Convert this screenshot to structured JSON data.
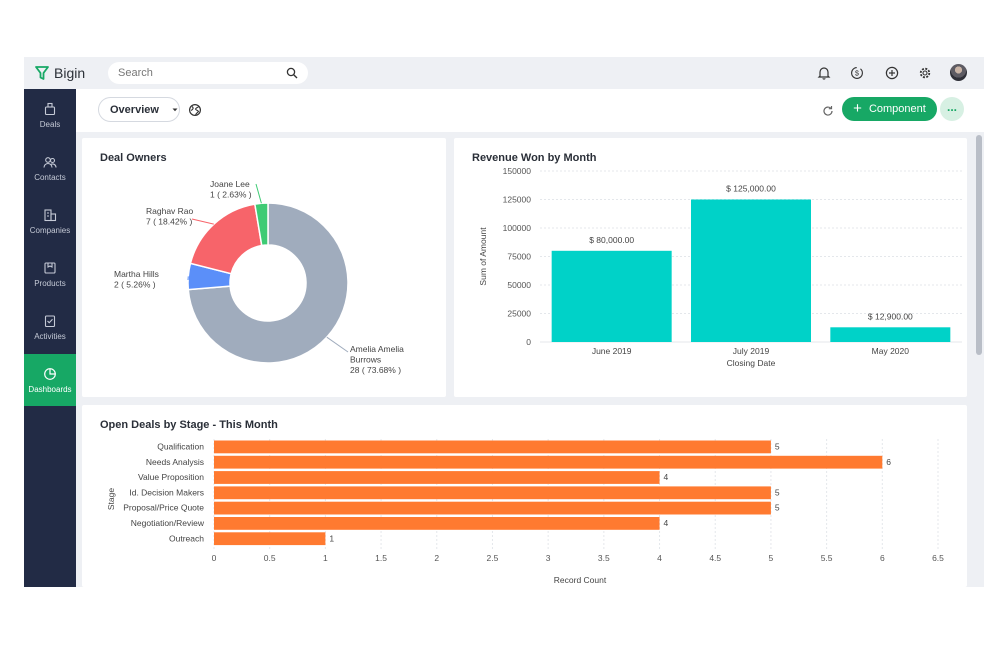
{
  "app": {
    "name": "Bigin"
  },
  "search": {
    "placeholder": "Search"
  },
  "sidebar": {
    "items": [
      {
        "label": "Deals",
        "icon": "deals-icon"
      },
      {
        "label": "Contacts",
        "icon": "contacts-icon"
      },
      {
        "label": "Companies",
        "icon": "companies-icon"
      },
      {
        "label": "Products",
        "icon": "products-icon"
      },
      {
        "label": "Activities",
        "icon": "activities-icon"
      },
      {
        "label": "Dashboards",
        "icon": "dashboards-icon",
        "active": true
      }
    ]
  },
  "header": {
    "view_label": "Overview",
    "component_label": "Component",
    "more_label": "..."
  },
  "colors": {
    "brand_green": "#17a865",
    "sidebar": "#222b45",
    "bar_teal": "#00d2c8",
    "bar_orange": "#ff7a30"
  },
  "cards": {
    "owners_title": "Deal Owners",
    "revenue_title": "Revenue Won by Month",
    "stage_title": "Open Deals by Stage - This Month"
  },
  "chart_data": [
    {
      "type": "pie",
      "title": "Deal Owners",
      "slices": [
        {
          "label": "Amelia Amelia Burrows",
          "value": 28,
          "percent": "73.68%",
          "color": "#a0acbd"
        },
        {
          "label": "Martha Hills",
          "value": 2,
          "percent": "5.26%",
          "color": "#5b8ff9"
        },
        {
          "label": "Raghav Rao",
          "value": 7,
          "percent": "18.42%",
          "color": "#f7646a"
        },
        {
          "label": "Joane Lee",
          "value": 1,
          "percent": "2.63%",
          "color": "#3ecb74"
        }
      ]
    },
    {
      "type": "bar",
      "title": "Revenue Won by Month",
      "categories": [
        "June 2019",
        "July 2019",
        "May 2020"
      ],
      "values": [
        80000,
        125000,
        12900
      ],
      "value_labels": [
        "$ 80,000.00",
        "$ 125,000.00",
        "$ 12,900.00"
      ],
      "xlabel": "Closing Date",
      "ylabel": "Sum of Amount",
      "ylim": [
        0,
        150000
      ],
      "yticks": [
        "150000",
        "125000",
        "100000",
        "75000",
        "50000",
        "25000",
        "0"
      ],
      "grid": true
    },
    {
      "type": "bar",
      "orientation": "horizontal",
      "title": "Open Deals by Stage - This Month",
      "categories": [
        "Qualification",
        "Needs Analysis",
        "Value Proposition",
        "Id. Decision Makers",
        "Proposal/Price Quote",
        "Negotiation/Review",
        "Outreach"
      ],
      "values": [
        5,
        6,
        4,
        5,
        5,
        4,
        1
      ],
      "xlabel": "Record Count",
      "ylabel": "Stage",
      "xlim": [
        0,
        6.5
      ],
      "xticks": [
        "0",
        "0.5",
        "1",
        "1.5",
        "2",
        "2.5",
        "3",
        "3.5",
        "4",
        "4.5",
        "5",
        "5.5",
        "6",
        "6.5"
      ],
      "grid": true
    }
  ]
}
